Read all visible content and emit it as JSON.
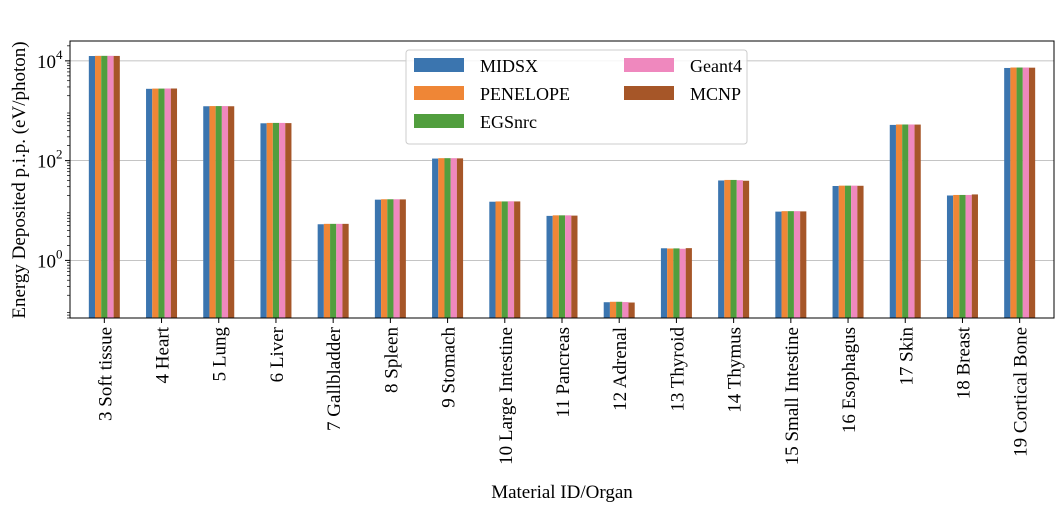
{
  "chart_data": {
    "type": "bar",
    "scale": "log",
    "xlabel": "Material ID/Organ",
    "ylabel": "Energy Deposited p.i.p. (eV/photon)",
    "ylim": [
      0.07,
      25000
    ],
    "yticks": [
      {
        "value": 1,
        "base": "10",
        "exp": "0"
      },
      {
        "value": 100,
        "base": "10",
        "exp": "2"
      },
      {
        "value": 10000,
        "base": "10",
        "exp": "4"
      }
    ],
    "grid": "horizontal-major",
    "legend_position": "top-center",
    "categories": [
      "3 Soft tissue",
      "4 Heart",
      "5 Lung",
      "6 Liver",
      "7 Gallbladder",
      "8 Spleen",
      "9 Stomach",
      "10 Large Intestine",
      "11 Pancreas",
      "12 Adrenal",
      "13 Thyroid",
      "14 Thymus",
      "15 Small Intestine",
      "16 Esophagus",
      "17 Skin",
      "18 Breast",
      "19 Cortical Bone"
    ],
    "series": [
      {
        "name": "MIDSX",
        "color": "#3b75af",
        "values": [
          12500,
          2750,
          1230,
          560,
          5.3,
          16.5,
          110,
          15.0,
          7.8,
          0.145,
          1.75,
          40,
          9.5,
          31,
          520,
          20,
          7200
        ]
      },
      {
        "name": "PENELOPE",
        "color": "#ef8636",
        "values": [
          12600,
          2780,
          1240,
          570,
          5.4,
          16.8,
          112,
          15.2,
          8.0,
          0.148,
          1.73,
          41,
          9.7,
          31.5,
          530,
          20.5,
          7350
        ]
      },
      {
        "name": "EGSnrc",
        "color": "#519e3e",
        "values": [
          12600,
          2780,
          1240,
          570,
          5.4,
          16.8,
          112,
          15.2,
          8.0,
          0.148,
          1.74,
          41,
          9.7,
          31.5,
          530,
          20.5,
          7350
        ]
      },
      {
        "name": "Geant4",
        "color": "#ef88be",
        "values": [
          12600,
          2790,
          1240,
          570,
          5.4,
          16.8,
          112,
          15.3,
          8.0,
          0.146,
          1.71,
          40.5,
          9.7,
          31.5,
          530,
          20.5,
          7350
        ]
      },
      {
        "name": "MCNP",
        "color": "#a65628",
        "values": [
          12550,
          2790,
          1230,
          565,
          5.4,
          16.7,
          111,
          15.2,
          7.9,
          0.143,
          1.76,
          39.5,
          9.6,
          31.3,
          528,
          21.0,
          7300
        ]
      }
    ]
  }
}
